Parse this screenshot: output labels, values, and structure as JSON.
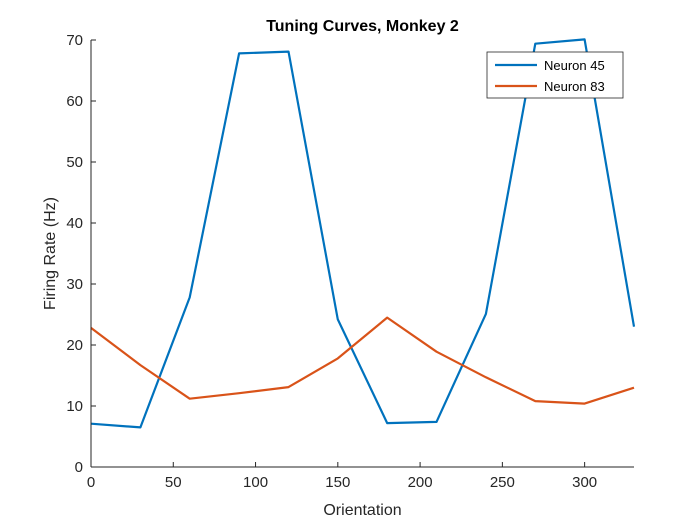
{
  "chart_data": {
    "type": "line",
    "title": "Tuning Curves, Monkey 2",
    "xlabel": "Orientation",
    "ylabel": "Firing Rate (Hz)",
    "xlim": [
      0,
      330
    ],
    "ylim": [
      0,
      70
    ],
    "xticks": [
      0,
      50,
      100,
      150,
      200,
      250,
      300
    ],
    "yticks": [
      0,
      10,
      20,
      30,
      40,
      50,
      60,
      70
    ],
    "grid": false,
    "legend_position": "top-right",
    "x": [
      0,
      30,
      60,
      90,
      120,
      150,
      180,
      210,
      240,
      270,
      300,
      330
    ],
    "series": [
      {
        "name": "Neuron 45",
        "color": "#0072BD",
        "values": [
          7.1,
          6.5,
          27.8,
          67.8,
          68.1,
          24.2,
          7.2,
          7.4,
          25.1,
          69.4,
          70.1,
          23.0
        ]
      },
      {
        "name": "Neuron 83",
        "color": "#D95319",
        "values": [
          22.8,
          16.7,
          11.2,
          12.1,
          13.1,
          17.8,
          24.5,
          18.9,
          14.7,
          10.8,
          10.4,
          13.0
        ]
      }
    ]
  }
}
